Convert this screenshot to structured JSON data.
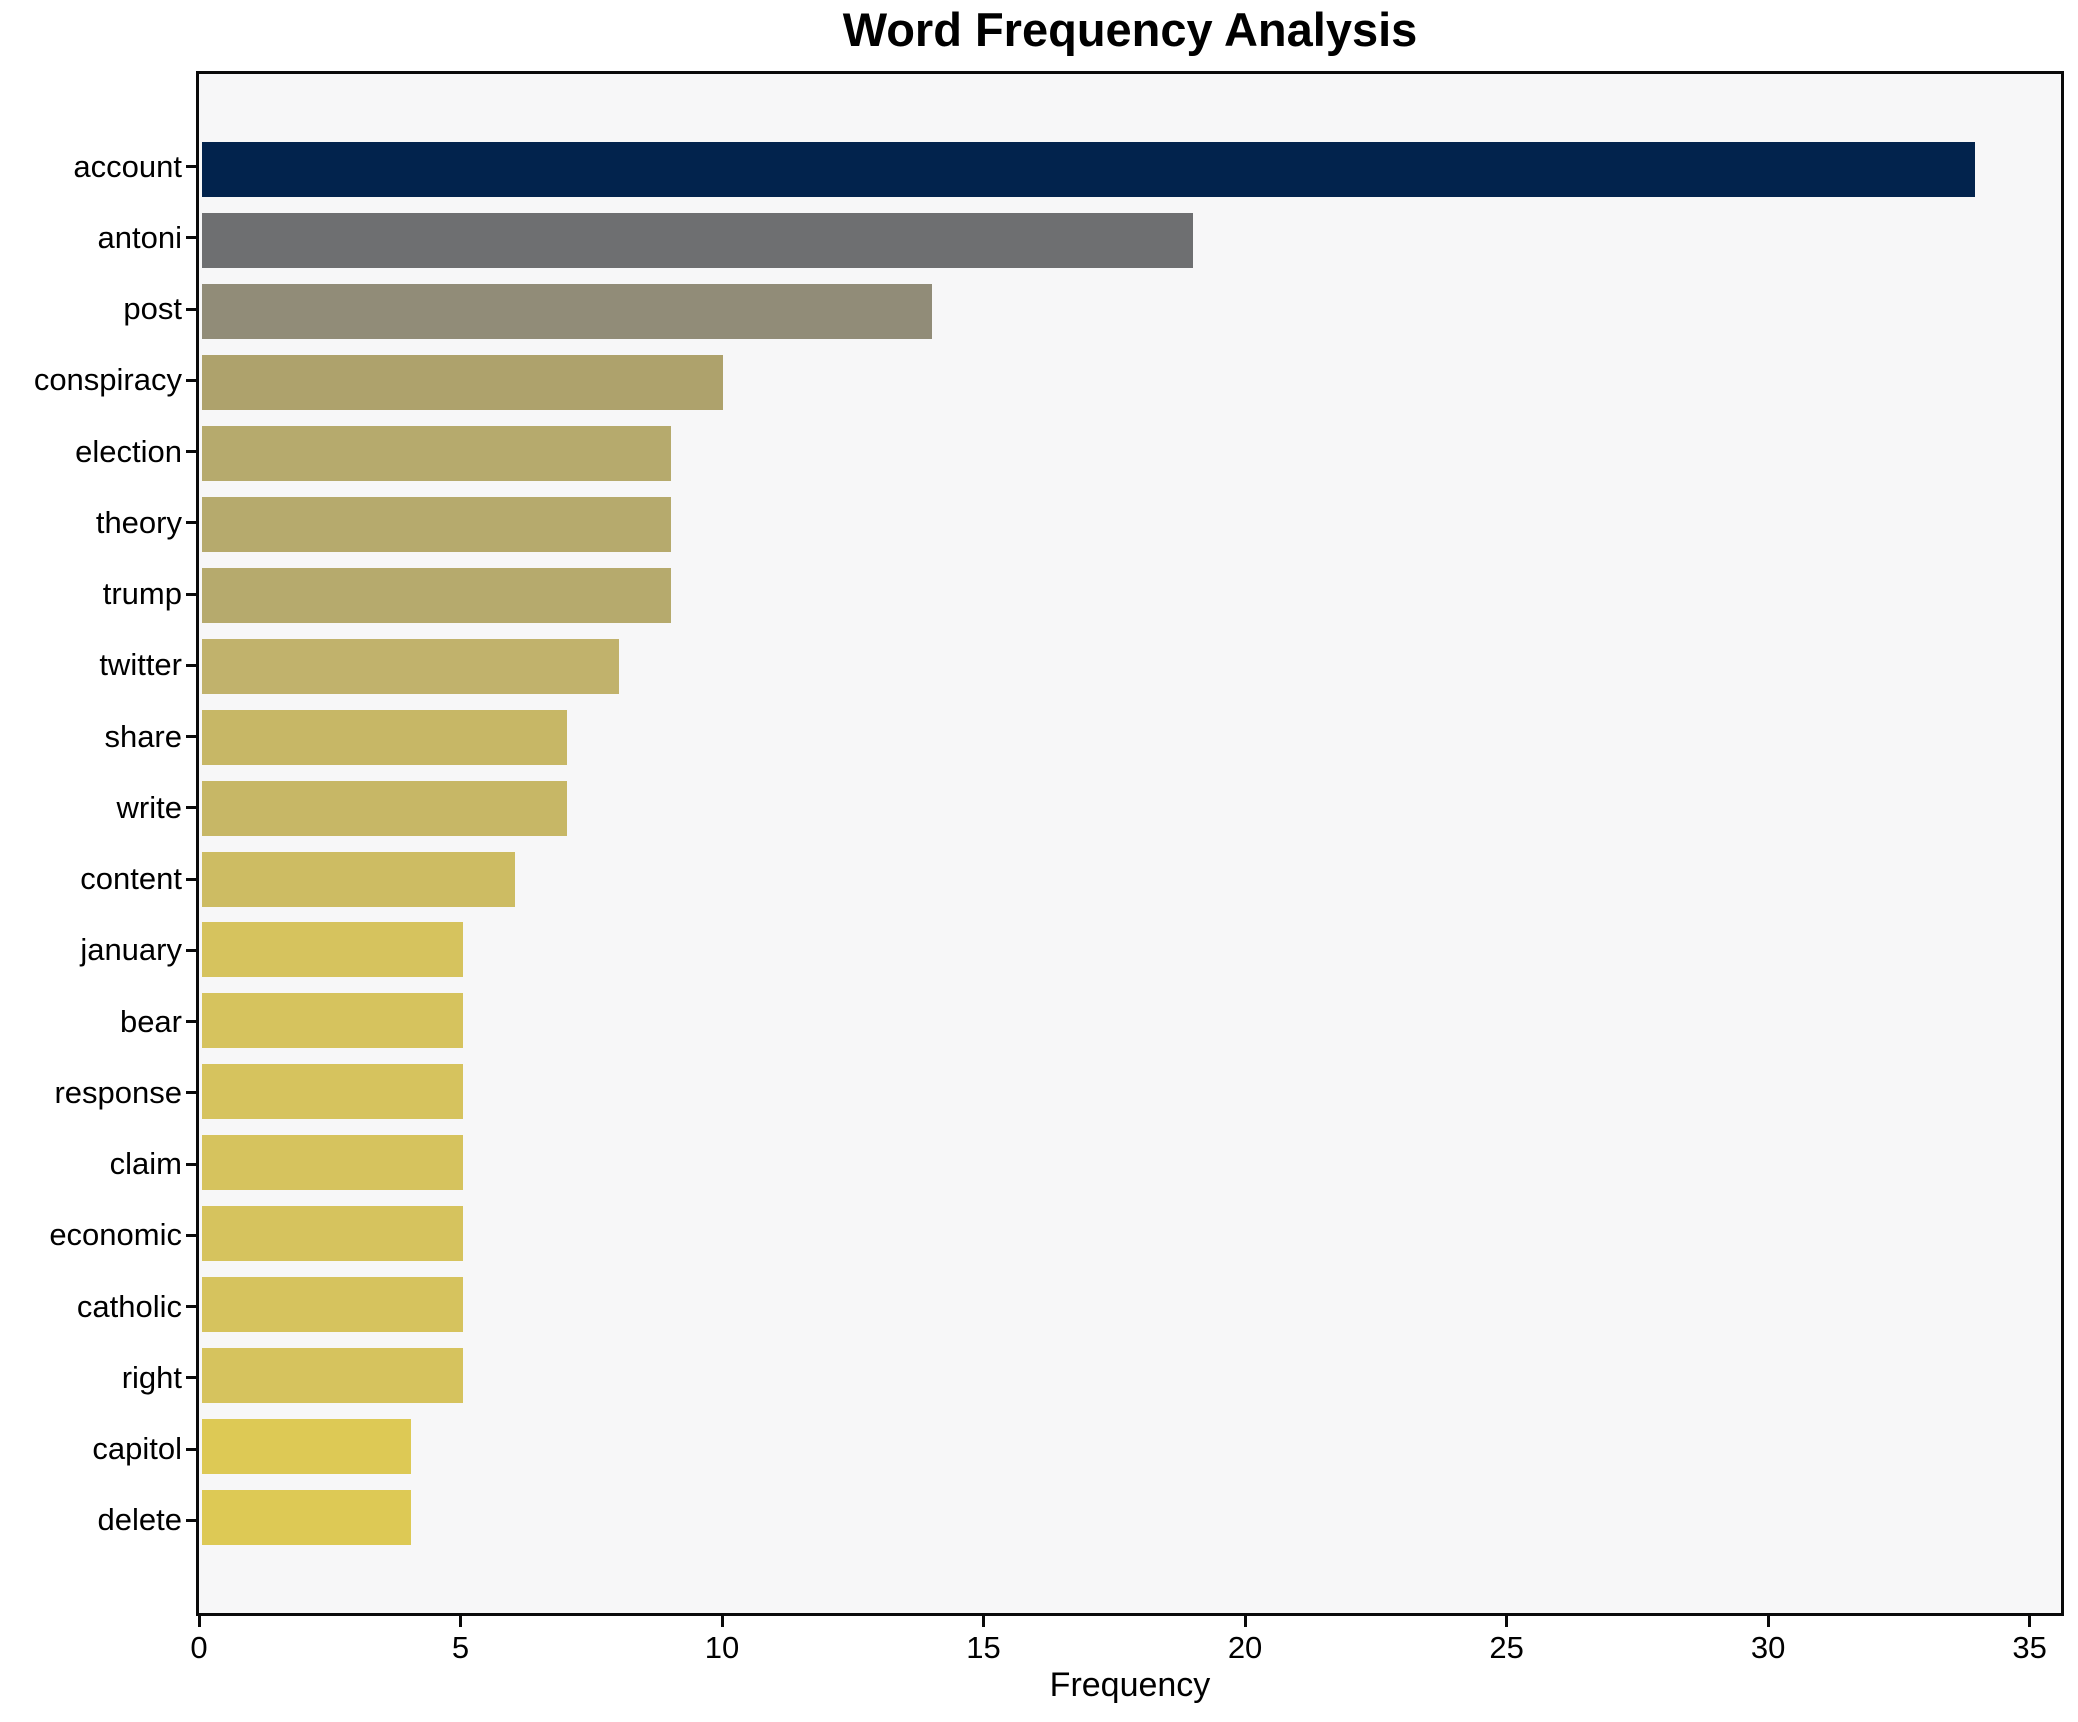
{
  "page": {
    "background": "#ffffff"
  },
  "chart_data": {
    "type": "bar",
    "orientation": "horizontal",
    "title": "Word Frequency Analysis",
    "xlabel": "Frequency",
    "ylabel": "",
    "categories": [
      "account",
      "antoni",
      "post",
      "conspiracy",
      "election",
      "theory",
      "trump",
      "twitter",
      "share",
      "write",
      "content",
      "january",
      "bear",
      "response",
      "claim",
      "economic",
      "catholic",
      "right",
      "capitol",
      "delete"
    ],
    "values": [
      34,
      19,
      14,
      10,
      9,
      9,
      9,
      8,
      7,
      7,
      6,
      5,
      5,
      5,
      5,
      5,
      5,
      5,
      4,
      4
    ],
    "bar_colors": [
      "#02234d",
      "#6e6f71",
      "#918c78",
      "#aea26c",
      "#b6aa6d",
      "#b6aa6d",
      "#b6aa6d",
      "#c1b26c",
      "#c7b766",
      "#c7b766",
      "#cdbc63",
      "#d6c35e",
      "#d6c35e",
      "#d6c35e",
      "#d6c35e",
      "#d6c35e",
      "#d6c35e",
      "#d6c35e",
      "#ddc955",
      "#ddc955"
    ],
    "xlim": [
      0,
      35.6
    ],
    "xticks": [
      0,
      5,
      10,
      15,
      20,
      25,
      30,
      35
    ],
    "grid": false,
    "legend_position": "none",
    "plot_background": "#f7f7f8",
    "spine_color": "#0a0a0a",
    "text_color": "#000000"
  }
}
